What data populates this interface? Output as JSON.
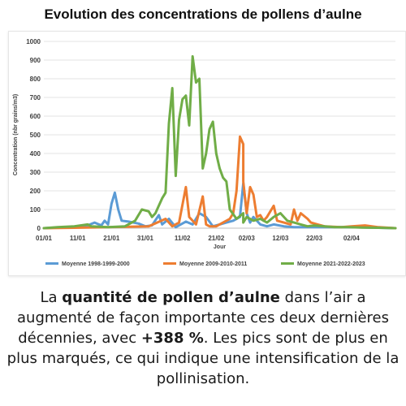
{
  "title": "Evolution des concentrations de pollens d’aulne",
  "caption": {
    "part1": "La ",
    "bold1": "quantité de pollen d’aulne",
    "part2": " dans l’air a augmenté de façon importante ces deux dernières décennies, avec ",
    "bold2": "+388 %",
    "part3": ". Les pics sont de plus en plus marqués, ce qui indique une intensification de la pollinisation."
  },
  "chart_data": {
    "type": "line",
    "title": "",
    "xlabel": "Jour",
    "ylabel": "Concentration (nbr grains/m3)",
    "ylim": [
      0,
      1000
    ],
    "yticks": [
      0,
      100,
      200,
      300,
      400,
      500,
      600,
      700,
      800,
      900,
      1000
    ],
    "xlim": [
      "01/01",
      "15/04"
    ],
    "xticks": [
      "01/01",
      "11/01",
      "21/01",
      "31/01",
      "11/02",
      "21/02",
      "02/03",
      "12/03",
      "22/03",
      "02/04"
    ],
    "legend_position": "bottom",
    "grid": "horizontal",
    "series": [
      {
        "name": "Moyenne 1998-1999-2000",
        "color": "#5b9bd5",
        "x": [
          "01/01",
          "05/01",
          "10/01",
          "13/01",
          "16/01",
          "18/01",
          "19/01",
          "20/01",
          "21/01",
          "22/01",
          "23/01",
          "24/01",
          "26/01",
          "29/01",
          "31/01",
          "02/02",
          "04/02",
          "05/02",
          "07/02",
          "09/02",
          "12/02",
          "14/02",
          "16/02",
          "18/02",
          "20/02",
          "22/02",
          "24/02",
          "26/02",
          "28/02",
          "29/02",
          "01/03",
          "02/03",
          "03/03",
          "04/03",
          "06/03",
          "08/03",
          "10/03",
          "13/03",
          "16/03",
          "20/03",
          "25/03",
          "01/04",
          "10/04",
          "15/04"
        ],
        "values": [
          0,
          3,
          5,
          8,
          30,
          15,
          40,
          20,
          130,
          190,
          100,
          40,
          35,
          25,
          10,
          15,
          70,
          20,
          50,
          5,
          35,
          20,
          80,
          60,
          10,
          20,
          30,
          40,
          60,
          240,
          240,
          80,
          30,
          60,
          20,
          10,
          20,
          10,
          5,
          5,
          5,
          5,
          2,
          0
        ]
      },
      {
        "name": "Moyenne 2009-2010-2011",
        "color": "#ed7d31",
        "x": [
          "01/01",
          "10/01",
          "20/01",
          "01/02",
          "06/02",
          "08/02",
          "10/02",
          "12/02",
          "13/02",
          "15/02",
          "17/02",
          "18/02",
          "19/02",
          "21/02",
          "23/02",
          "25/02",
          "26/02",
          "27/02",
          "28/02",
          "29/02",
          "01/03",
          "02/03",
          "03/03",
          "04/03",
          "05/03",
          "06/03",
          "07/03",
          "08/03",
          "10/03",
          "11/03",
          "13/03",
          "15/03",
          "16/03",
          "17/03",
          "18/03",
          "20/03",
          "21/03",
          "23/03",
          "25/03",
          "30/03",
          "02/04",
          "06/04",
          "10/04",
          "15/04"
        ],
        "values": [
          0,
          2,
          5,
          10,
          50,
          10,
          30,
          220,
          60,
          20,
          170,
          20,
          10,
          10,
          30,
          50,
          80,
          200,
          490,
          450,
          250,
          80,
          220,
          180,
          60,
          70,
          40,
          60,
          120,
          40,
          30,
          20,
          100,
          40,
          80,
          50,
          30,
          20,
          10,
          5,
          10,
          15,
          5,
          0
        ]
      },
      {
        "name": "Moyenne 2021-2022-2023",
        "color": "#70ad47",
        "x": [
          "01/01",
          "05/01",
          "10/01",
          "14/01",
          "15/01",
          "20/01",
          "25/01",
          "28/01",
          "30/01",
          "01/02",
          "02/02",
          "03/02",
          "05/02",
          "06/02",
          "07/02",
          "08/02",
          "09/02",
          "10/02",
          "11/02",
          "12/02",
          "13/02",
          "14/02",
          "15/02",
          "16/02",
          "17/02",
          "18/02",
          "19/02",
          "20/02",
          "21/02",
          "22/02",
          "23/02",
          "24/02",
          "25/02",
          "27/02",
          "29/02",
          "01/03",
          "02/03",
          "04/03",
          "06/03",
          "08/03",
          "10/03",
          "12/03",
          "14/03",
          "16/03",
          "18/03",
          "20/03",
          "22/03",
          "25/03",
          "28/03",
          "01/04",
          "05/04",
          "10/04",
          "15/04"
        ],
        "values": [
          0,
          5,
          10,
          20,
          10,
          5,
          10,
          40,
          100,
          90,
          60,
          80,
          160,
          190,
          560,
          750,
          280,
          580,
          690,
          710,
          550,
          920,
          780,
          800,
          320,
          400,
          530,
          570,
          400,
          320,
          270,
          250,
          100,
          50,
          80,
          30,
          60,
          40,
          50,
          30,
          60,
          80,
          40,
          30,
          20,
          10,
          15,
          10,
          5,
          5,
          3,
          2,
          0
        ]
      }
    ]
  }
}
